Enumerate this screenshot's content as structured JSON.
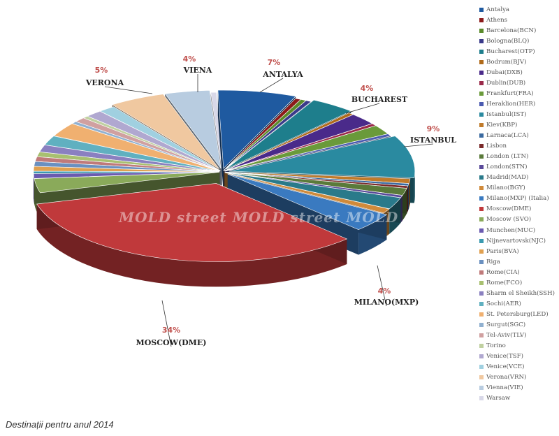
{
  "caption": "Destinații pentru anul 2014",
  "watermark": "MOLD street MOLD street MOLD street",
  "chart_data": {
    "type": "pie",
    "style": "3d-exploded",
    "legend_position": "right",
    "categories": [
      "Antalya",
      "Athens",
      "Barcelona(BCN)",
      "Bologna(BLQ)",
      "Bucharest(OTP)",
      "Bodrum(BJV)",
      "Dubai(DXB)",
      "Dublin(DUB)",
      "Frankfurt(FRA)",
      "Heraklion(HER)",
      "Istanbul(IST)",
      "Kiev(KBP)",
      "Larnaca(LCA)",
      "Lisbon",
      "London (LTN)",
      "London(STN)",
      "Madrid(MAD)",
      "Milano(BGY)",
      "Milano(MXP) (Italia)",
      "Moscow(DME)",
      "Moscow (SVO)",
      "Munchen(MUC)",
      "Nijnevartovsk(NJC)",
      "Paris(BVA)",
      "Riga",
      "Rome(CIA)",
      "Rome(FCO)",
      "Sharm el Sheikh(SSH)",
      "Sochi(AER)",
      "St. Petersburg(LED)",
      "Surgut(SGC)",
      "Tel-Aviv(TLV)",
      "Torino",
      "Venice(TSF)",
      "Venice(VCE)",
      "Verona(VRN)",
      "Vienna(VIE)",
      "Warsaw"
    ],
    "values": [
      7,
      0.5,
      0.5,
      0.5,
      4,
      0.5,
      2.5,
      0.5,
      2,
      0.5,
      9,
      1,
      0.5,
      0.5,
      1.5,
      0.5,
      2.5,
      1,
      4,
      34,
      3,
      1,
      0.5,
      1,
      1,
      1,
      1,
      1.5,
      2,
      3,
      0.5,
      1,
      0.5,
      1.5,
      1.5,
      5,
      4,
      0.5
    ],
    "colors": [
      "#1f5aa0",
      "#8c1a1a",
      "#5a8a2a",
      "#3a3a8a",
      "#1e7e8c",
      "#b06a1a",
      "#4a2a8a",
      "#9a2a4a",
      "#6a9a3a",
      "#4a5ab0",
      "#2a8aa0",
      "#c07a2a",
      "#3a6aa0",
      "#7a2a2a",
      "#5a7a3a",
      "#5a4a9a",
      "#2a7a8a",
      "#d08a3a",
      "#3a7ac0",
      "#c0393b",
      "#8aaa5a",
      "#6a5ab0",
      "#3a9ab0",
      "#e0a050",
      "#6a90c0",
      "#c07a7a",
      "#a8c070",
      "#8a80c0",
      "#60b0c0",
      "#f0b070",
      "#90b0d0",
      "#d0a0a0",
      "#c0d0a0",
      "#b0a8d0",
      "#a0d0e0",
      "#f0c8a0",
      "#b8cce0",
      "#d8d8e8"
    ],
    "annotations": [
      {
        "label": "ANTALYA",
        "percent": "7%"
      },
      {
        "label": "BUCHAREST",
        "percent": "4%"
      },
      {
        "label": "ISTANBUL",
        "percent": "9%"
      },
      {
        "label": "MILANO(MXP)",
        "percent": "4%"
      },
      {
        "label": "MOSCOW(DME)",
        "percent": "34%"
      },
      {
        "label": "VERONA",
        "percent": "5%"
      },
      {
        "label": "VIENA",
        "percent": "4%"
      }
    ]
  }
}
